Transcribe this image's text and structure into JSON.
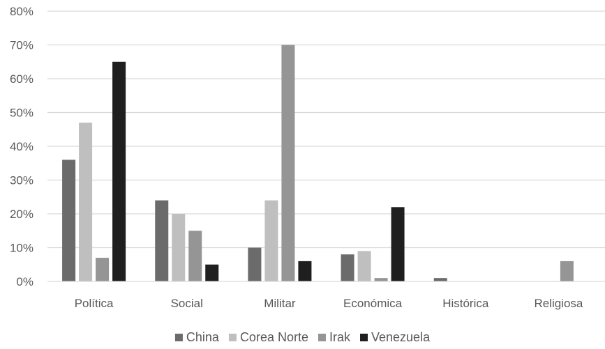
{
  "chart_data": {
    "type": "bar",
    "title": "",
    "xlabel": "",
    "ylabel": "",
    "categories": [
      "Política",
      "Social",
      "Militar",
      "Económica",
      "Histórica",
      "Religiosa"
    ],
    "series": [
      {
        "name": "China",
        "color": "#6b6b6b",
        "values": [
          36,
          24,
          10,
          8,
          1,
          0
        ]
      },
      {
        "name": "Corea Norte",
        "color": "#bfbfbf",
        "values": [
          47,
          20,
          24,
          9,
          0,
          0
        ]
      },
      {
        "name": "Irak",
        "color": "#959595",
        "values": [
          7,
          15,
          70,
          1,
          0,
          6
        ]
      },
      {
        "name": "Venezuela",
        "color": "#1f1f1f",
        "values": [
          65,
          5,
          6,
          22,
          0,
          0
        ]
      }
    ],
    "ylim": [
      0,
      80
    ],
    "yticks": [
      "0%",
      "10%",
      "20%",
      "30%",
      "40%",
      "50%",
      "60%",
      "70%",
      "80%"
    ],
    "grid": true,
    "legend_position": "bottom"
  }
}
